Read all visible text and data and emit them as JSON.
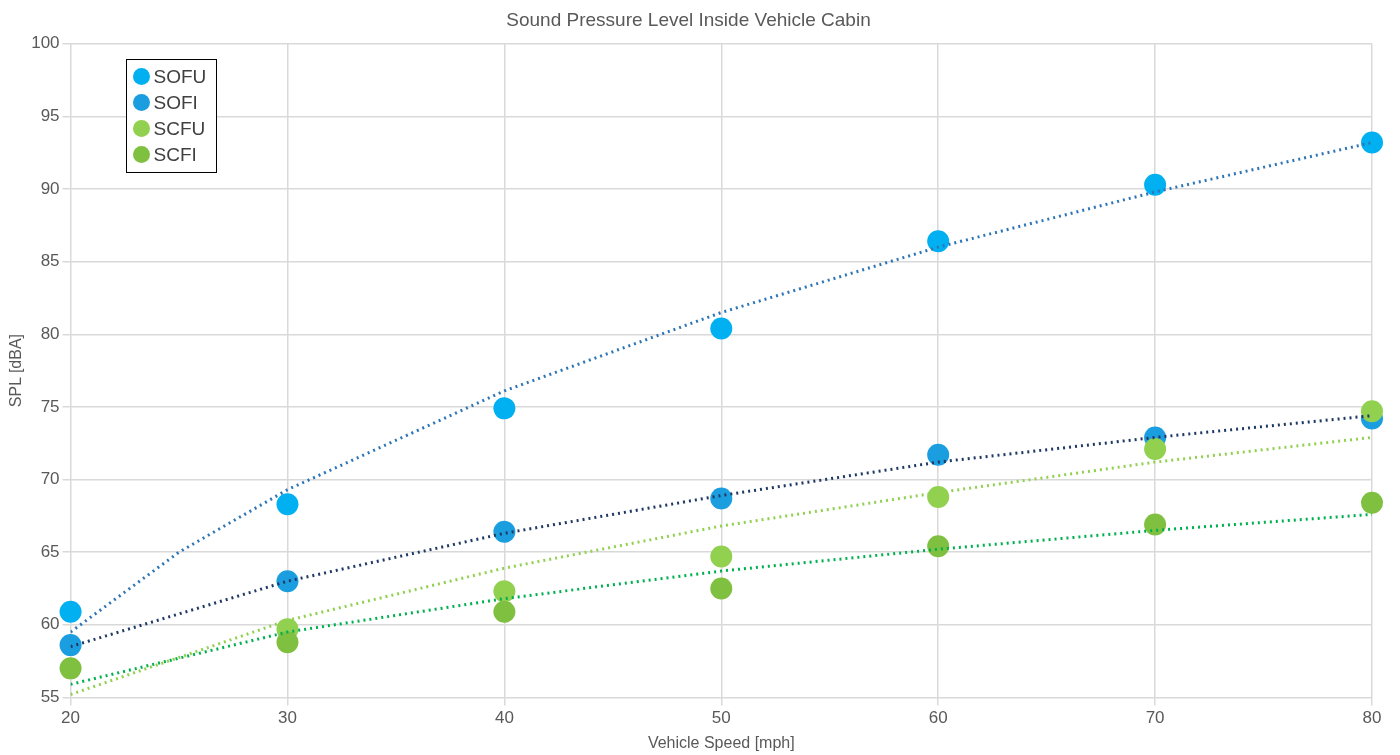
{
  "chart_data": {
    "type": "scatter",
    "title": "Sound Pressure Level Inside Vehicle Cabin",
    "xlabel": "Vehicle Speed [mph]",
    "ylabel": "SPL [dBA]",
    "x": [
      20,
      30,
      40,
      50,
      60,
      70,
      80
    ],
    "series": [
      {
        "name": "SOFU",
        "color": "#00b0f0",
        "values": [
          60.9,
          68.3,
          74.9,
          80.4,
          86.4,
          90.3,
          93.2
        ]
      },
      {
        "name": "SOFI",
        "color": "#1a9ee0",
        "values": [
          58.6,
          63.0,
          66.4,
          68.7,
          71.7,
          72.9,
          74.2
        ]
      },
      {
        "name": "SCFU",
        "color": "#92d050",
        "values": [
          null,
          59.7,
          62.3,
          64.7,
          68.8,
          72.1,
          74.7
        ]
      },
      {
        "name": "SCFI",
        "color": "#80c040",
        "values": [
          57.0,
          58.8,
          60.9,
          62.5,
          65.4,
          66.9,
          68.4
        ]
      },
      {
        "type": "line",
        "color": "#2e75b6",
        "line_style": "dotted",
        "marker": "none",
        "x": [
          20,
          25,
          30,
          40,
          50,
          60,
          70,
          80
        ],
        "values": [
          59.5,
          65.0,
          69.3,
          76.1,
          81.5,
          86.0,
          89.8,
          93.2
        ]
      },
      {
        "type": "line",
        "color": "#1f3864",
        "line_style": "dotted",
        "marker": "none",
        "x": [
          20,
          30,
          40,
          50,
          60,
          70,
          80
        ],
        "values": [
          58.5,
          63.0,
          66.3,
          68.9,
          71.2,
          72.9,
          74.4
        ]
      },
      {
        "type": "line",
        "color": "#92d050",
        "line_style": "dotted",
        "marker": "none",
        "x": [
          20,
          30,
          40,
          50,
          60,
          70,
          80
        ],
        "values": [
          55.2,
          60.3,
          63.9,
          66.8,
          69.1,
          71.2,
          72.9
        ]
      },
      {
        "type": "line",
        "color": "#00b050",
        "line_style": "dotted",
        "marker": "none",
        "x": [
          20,
          30,
          40,
          50,
          60,
          70,
          80
        ],
        "values": [
          55.9,
          59.5,
          61.8,
          63.7,
          65.2,
          66.5,
          67.6
        ]
      }
    ],
    "xlim": [
      20,
      80
    ],
    "xticks": [
      20,
      30,
      40,
      50,
      60,
      70,
      80
    ],
    "ylim": [
      55,
      100
    ],
    "yticks": [
      55,
      60,
      65,
      70,
      75,
      80,
      85,
      90,
      95,
      100
    ],
    "grid": true,
    "legend": "top left",
    "marker": "circle"
  }
}
